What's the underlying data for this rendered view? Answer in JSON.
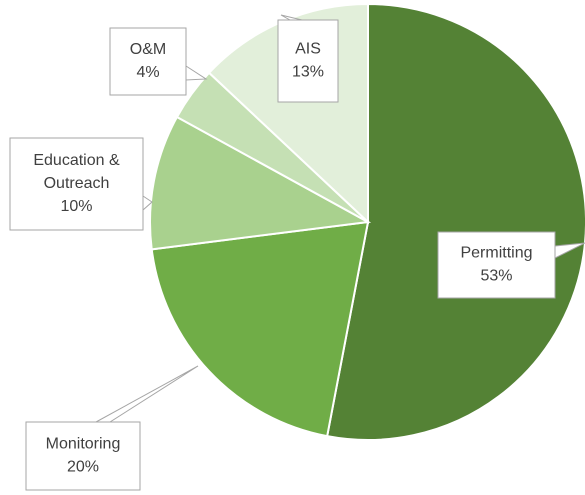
{
  "chart_data": {
    "type": "pie",
    "categories": [
      "Permitting",
      "Monitoring",
      "Education & Outreach",
      "O&M",
      "AIS"
    ],
    "values": [
      53,
      20,
      10,
      4,
      13
    ],
    "value_labels": [
      "53%",
      "20%",
      "10%",
      "4%",
      "13%"
    ],
    "colors": [
      "#548235",
      "#70ad47",
      "#a9d18e",
      "#c5e0b4",
      "#e2efda"
    ]
  }
}
